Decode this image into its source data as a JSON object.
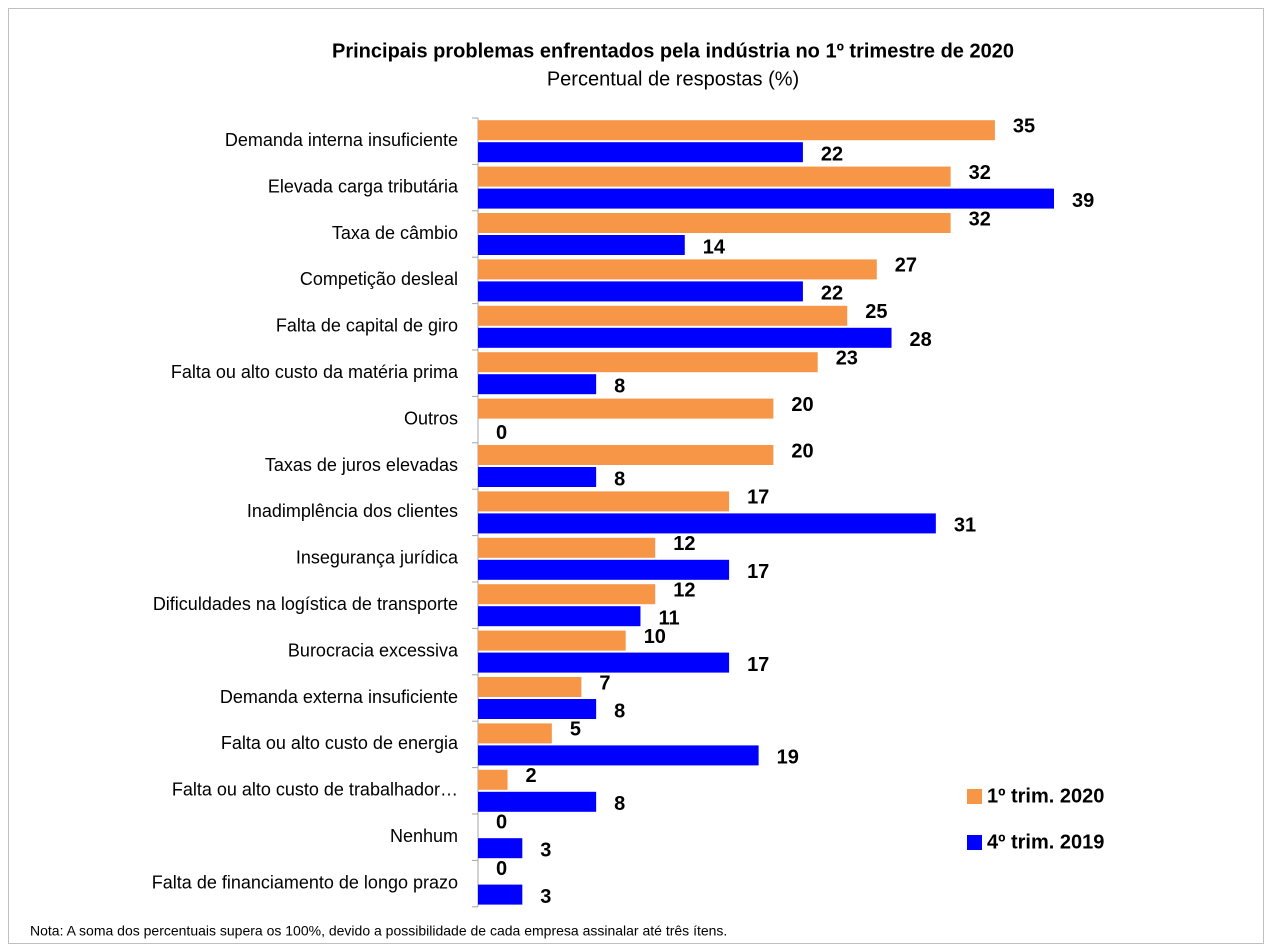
{
  "chart_data": {
    "type": "bar",
    "orientation": "horizontal",
    "title": "Principais problemas enfrentados pela indústria no 1º trimestre de 2020",
    "subtitle": "Percentual de respostas (%)",
    "categories": [
      "Demanda interna insuficiente",
      "Elevada carga tributária",
      "Taxa de câmbio",
      "Competição desleal",
      "Falta de capital de giro",
      "Falta ou alto custo da matéria prima",
      "Outros",
      "Taxas de juros elevadas",
      "Inadimplência dos clientes",
      "Insegurança jurídica",
      "Dificuldades na logística de transporte",
      "Burocracia excessiva",
      "Demanda externa insuficiente",
      "Falta ou alto custo de energia",
      "Falta ou alto custo de trabalhador…",
      "Nenhum",
      "Falta de financiamento de longo prazo"
    ],
    "series": [
      {
        "name": "1º trim. 2020",
        "color": "#f79646",
        "values": [
          35,
          32,
          32,
          27,
          25,
          23,
          20,
          20,
          17,
          12,
          12,
          10,
          7,
          5,
          2,
          0,
          0
        ]
      },
      {
        "name": "4º trim. 2019",
        "color": "#0000ff",
        "values": [
          22,
          39,
          14,
          22,
          28,
          8,
          0,
          8,
          31,
          17,
          11,
          17,
          8,
          19,
          8,
          3,
          3
        ]
      }
    ],
    "legend": "lower right",
    "note": "Nota: A soma dos percentuais supera os 100%, devido a possibilidade de cada empresa assinalar até três ítens."
  }
}
